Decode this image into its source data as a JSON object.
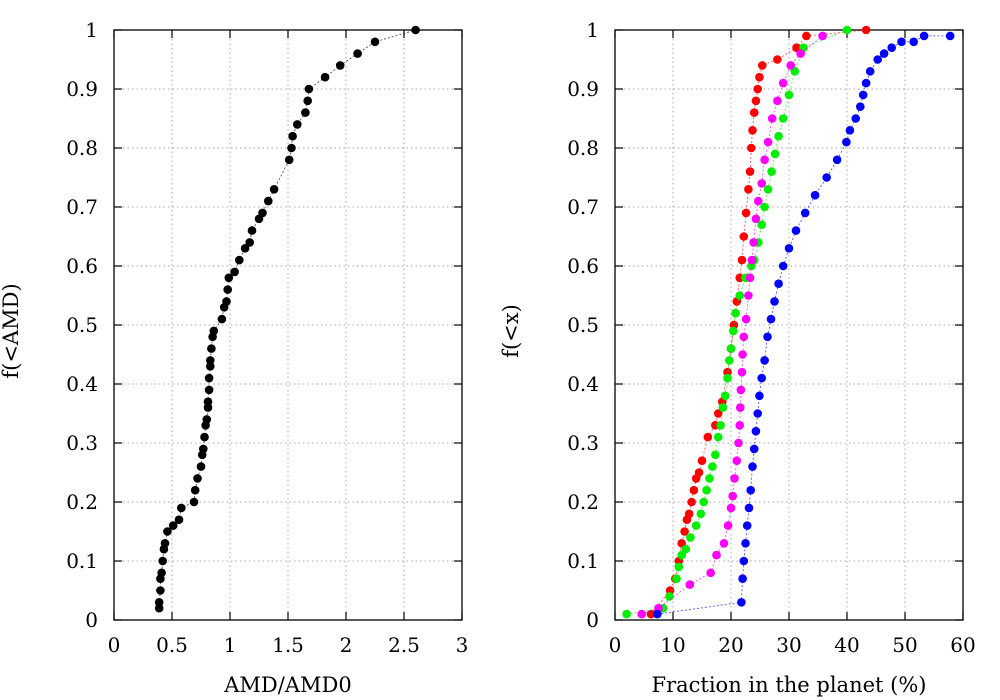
{
  "chart_data": [
    {
      "type": "line",
      "title": "",
      "xlabel": "AMD/AMD0",
      "ylabel": "f(<AMD)",
      "xlim": [
        0,
        3
      ],
      "ylim": [
        0,
        1
      ],
      "xticks": [
        "0",
        "0.5",
        "1",
        "1.5",
        "2",
        "2.5",
        "3"
      ],
      "yticks": [
        "0",
        "0.1",
        "0.2",
        "0.3",
        "0.4",
        "0.5",
        "0.6",
        "0.7",
        "0.8",
        "0.9",
        "1"
      ],
      "grid": true,
      "series": [
        {
          "color": "#000000",
          "x": [
            0.39,
            0.39,
            0.4,
            0.4,
            0.41,
            0.42,
            0.43,
            0.44,
            0.46,
            0.51,
            0.56,
            0.58,
            0.69,
            0.7,
            0.72,
            0.75,
            0.76,
            0.77,
            0.78,
            0.79,
            0.8,
            0.81,
            0.81,
            0.82,
            0.82,
            0.83,
            0.83,
            0.84,
            0.85,
            0.86,
            0.93,
            0.95,
            0.97,
            0.98,
            0.99,
            1.04,
            1.08,
            1.13,
            1.17,
            1.19,
            1.25,
            1.28,
            1.33,
            1.38,
            1.51,
            1.53,
            1.54,
            1.58,
            1.65,
            1.67,
            1.68,
            1.82,
            1.95,
            2.1,
            2.25,
            2.6
          ],
          "y": [
            0.02,
            0.03,
            0.05,
            0.07,
            0.08,
            0.1,
            0.12,
            0.13,
            0.15,
            0.16,
            0.17,
            0.19,
            0.2,
            0.22,
            0.24,
            0.26,
            0.28,
            0.29,
            0.31,
            0.33,
            0.34,
            0.36,
            0.37,
            0.39,
            0.41,
            0.43,
            0.44,
            0.46,
            0.48,
            0.49,
            0.51,
            0.53,
            0.54,
            0.56,
            0.58,
            0.59,
            0.61,
            0.63,
            0.64,
            0.66,
            0.68,
            0.69,
            0.71,
            0.73,
            0.78,
            0.8,
            0.82,
            0.84,
            0.86,
            0.88,
            0.9,
            0.92,
            0.94,
            0.96,
            0.98,
            1.0
          ]
        }
      ]
    },
    {
      "type": "line",
      "title": "",
      "xlabel": "Fraction in the planet (%)",
      "ylabel": "f(<x)",
      "xlim": [
        0,
        60
      ],
      "ylim": [
        0,
        1
      ],
      "xticks": [
        "0",
        "10",
        "20",
        "30",
        "40",
        "50",
        "60"
      ],
      "yticks": [
        "0",
        "0.1",
        "0.2",
        "0.3",
        "0.4",
        "0.5",
        "0.6",
        "0.7",
        "0.8",
        "0.9",
        "1"
      ],
      "grid": true,
      "series": [
        {
          "color": "#ff0000",
          "x": [
            6.2,
            9.5,
            10.4,
            11.0,
            11.5,
            12.0,
            12.4,
            12.8,
            13.2,
            13.6,
            14.0,
            14.5,
            15.0,
            16.0,
            17.3,
            17.8,
            18.5,
            19.4,
            20.0,
            20.5,
            21.0,
            21.5,
            21.9,
            22.2,
            22.6,
            23.0,
            23.3,
            23.5,
            23.7,
            24.0,
            24.3,
            24.6,
            24.9,
            25.4,
            28.0,
            31.3,
            33.0,
            43.3
          ],
          "y": [
            0.01,
            0.05,
            0.07,
            0.1,
            0.13,
            0.15,
            0.17,
            0.18,
            0.2,
            0.22,
            0.24,
            0.25,
            0.27,
            0.31,
            0.33,
            0.35,
            0.37,
            0.42,
            0.46,
            0.5,
            0.54,
            0.58,
            0.61,
            0.65,
            0.69,
            0.73,
            0.76,
            0.8,
            0.83,
            0.86,
            0.88,
            0.9,
            0.92,
            0.94,
            0.95,
            0.97,
            0.99,
            1.0
          ]
        },
        {
          "color": "#00ee00",
          "x": [
            2.0,
            8.3,
            9.4,
            10.6,
            11.0,
            11.5,
            12.2,
            13.0,
            14.0,
            14.8,
            15.3,
            15.8,
            16.3,
            16.8,
            17.3,
            17.8,
            18.2,
            18.6,
            19.0,
            19.4,
            19.7,
            20.0,
            20.4,
            20.8,
            21.5,
            22.5,
            23.5,
            24.0,
            24.7,
            25.3,
            25.8,
            26.4,
            27.0,
            27.6,
            28.2,
            29.0,
            30.0,
            31.0,
            32.5,
            40.0
          ],
          "y": [
            0.01,
            0.02,
            0.04,
            0.07,
            0.09,
            0.11,
            0.12,
            0.14,
            0.16,
            0.18,
            0.2,
            0.22,
            0.24,
            0.26,
            0.28,
            0.31,
            0.33,
            0.36,
            0.38,
            0.41,
            0.44,
            0.46,
            0.49,
            0.52,
            0.55,
            0.58,
            0.6,
            0.61,
            0.64,
            0.67,
            0.7,
            0.73,
            0.76,
            0.79,
            0.82,
            0.85,
            0.89,
            0.93,
            0.97,
            1.0
          ]
        },
        {
          "color": "#ff00ff",
          "x": [
            4.6,
            7.5,
            12.9,
            16.5,
            17.5,
            18.8,
            19.5,
            20.0,
            20.3,
            20.6,
            21.0,
            21.3,
            21.5,
            21.6,
            21.7,
            21.9,
            22.0,
            22.2,
            22.6,
            23.0,
            23.3,
            23.6,
            23.9,
            24.3,
            24.7,
            25.3,
            25.8,
            26.4,
            27.1,
            28.0,
            29.0,
            30.3,
            32.0,
            35.8
          ],
          "y": [
            0.01,
            0.02,
            0.06,
            0.08,
            0.11,
            0.13,
            0.16,
            0.19,
            0.21,
            0.24,
            0.27,
            0.3,
            0.33,
            0.36,
            0.39,
            0.42,
            0.45,
            0.48,
            0.51,
            0.55,
            0.58,
            0.61,
            0.64,
            0.68,
            0.71,
            0.74,
            0.78,
            0.81,
            0.85,
            0.88,
            0.91,
            0.94,
            0.96,
            0.99
          ]
        },
        {
          "color": "#0000ff",
          "x": [
            7.3,
            21.8,
            22.0,
            22.2,
            22.5,
            22.8,
            23.1,
            23.4,
            23.7,
            24.0,
            24.3,
            24.6,
            24.9,
            25.3,
            25.8,
            26.3,
            26.9,
            27.5,
            28.2,
            29.0,
            30.0,
            31.2,
            32.8,
            34.5,
            36.5,
            38.3,
            39.9,
            40.5,
            41.5,
            42.3,
            42.8,
            43.3,
            44.0,
            45.3,
            46.4,
            47.7,
            49.4,
            51.5,
            53.3,
            57.8
          ],
          "y": [
            0.01,
            0.03,
            0.07,
            0.1,
            0.13,
            0.16,
            0.19,
            0.22,
            0.26,
            0.29,
            0.32,
            0.35,
            0.38,
            0.41,
            0.44,
            0.48,
            0.51,
            0.54,
            0.57,
            0.6,
            0.63,
            0.66,
            0.69,
            0.72,
            0.75,
            0.78,
            0.81,
            0.83,
            0.85,
            0.87,
            0.89,
            0.91,
            0.93,
            0.95,
            0.96,
            0.97,
            0.98,
            0.98,
            0.99,
            0.99
          ]
        }
      ]
    }
  ]
}
